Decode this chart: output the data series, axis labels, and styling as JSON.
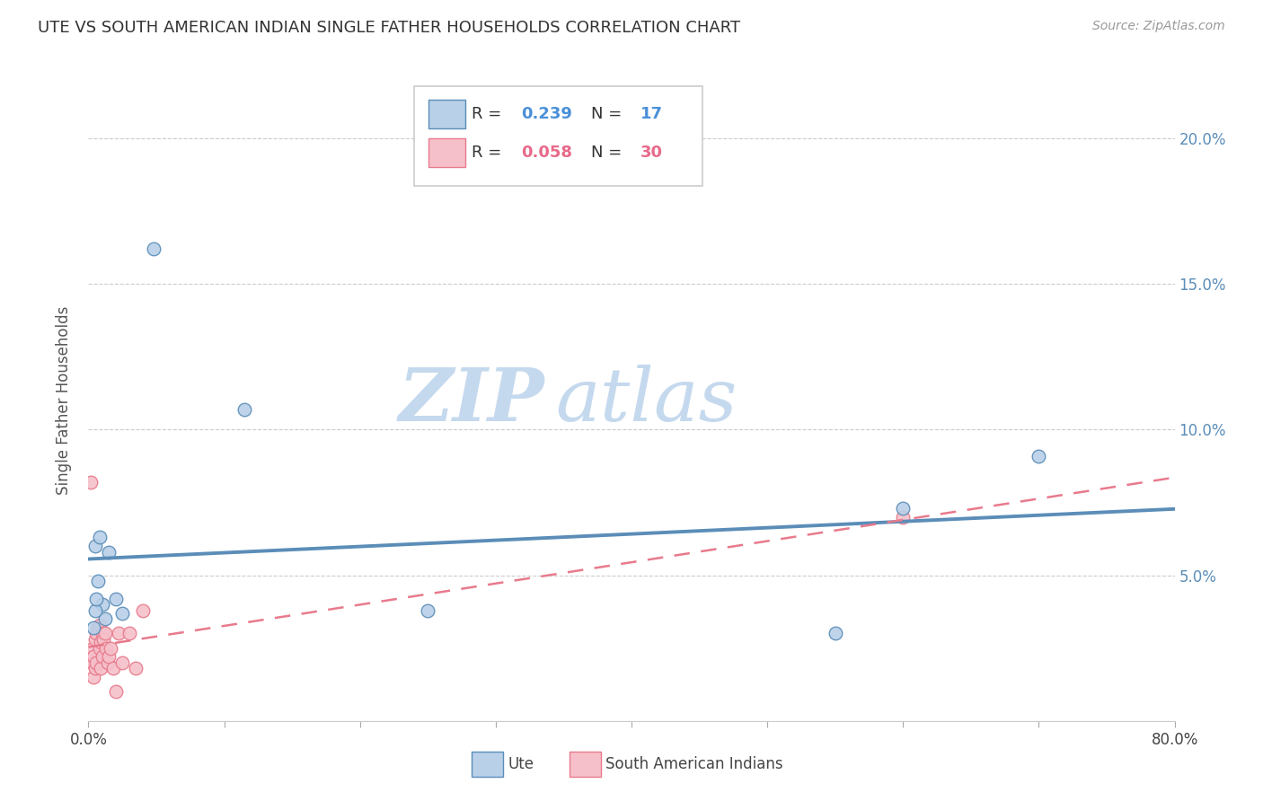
{
  "title": "UTE VS SOUTH AMERICAN INDIAN SINGLE FATHER HOUSEHOLDS CORRELATION CHART",
  "source": "Source: ZipAtlas.com",
  "ylabel": "Single Father Households",
  "xlim": [
    0,
    0.8
  ],
  "ylim": [
    0,
    0.22
  ],
  "xticks": [
    0.0,
    0.1,
    0.2,
    0.3,
    0.4,
    0.5,
    0.6,
    0.7,
    0.8
  ],
  "xticklabels": [
    "0.0%",
    "",
    "",
    "",
    "",
    "",
    "",
    "",
    "80.0%"
  ],
  "yticks": [
    0.0,
    0.05,
    0.1,
    0.15,
    0.2
  ],
  "yticklabels_left": [
    "",
    "",
    "",
    "",
    ""
  ],
  "yticklabels_right": [
    "",
    "5.0%",
    "10.0%",
    "15.0%",
    "20.0%"
  ],
  "ute_color": "#5B8DB8",
  "ute_fill": "#B8D0E8",
  "sa_color": "#E87A8C",
  "sa_fill": "#F5C0CA",
  "ute_R": 0.239,
  "ute_N": 17,
  "sa_R": 0.058,
  "sa_N": 30,
  "ute_points_x": [
    0.048,
    0.115,
    0.005,
    0.008,
    0.01,
    0.012,
    0.005,
    0.006,
    0.007,
    0.015,
    0.02,
    0.025,
    0.25,
    0.6,
    0.7,
    0.55,
    0.004
  ],
  "ute_points_y": [
    0.162,
    0.107,
    0.06,
    0.063,
    0.04,
    0.035,
    0.038,
    0.042,
    0.048,
    0.058,
    0.042,
    0.037,
    0.038,
    0.073,
    0.091,
    0.03,
    0.032
  ],
  "sa_points_x": [
    0.003,
    0.003,
    0.004,
    0.004,
    0.005,
    0.005,
    0.006,
    0.006,
    0.007,
    0.008,
    0.008,
    0.009,
    0.009,
    0.01,
    0.01,
    0.011,
    0.012,
    0.013,
    0.014,
    0.015,
    0.016,
    0.018,
    0.02,
    0.022,
    0.025,
    0.03,
    0.035,
    0.04,
    0.6,
    0.002
  ],
  "sa_points_y": [
    0.02,
    0.025,
    0.015,
    0.022,
    0.018,
    0.028,
    0.03,
    0.02,
    0.032,
    0.025,
    0.033,
    0.018,
    0.027,
    0.03,
    0.022,
    0.028,
    0.03,
    0.025,
    0.02,
    0.022,
    0.025,
    0.018,
    0.01,
    0.03,
    0.02,
    0.03,
    0.018,
    0.038,
    0.07,
    0.082
  ],
  "watermark_zip": "ZIP",
  "watermark_atlas": "atlas",
  "marker_size": 110,
  "background_color": "#ffffff",
  "grid_color": "#cccccc",
  "legend_text_color": "#333333",
  "legend_val_color_blue": "#4A90D9",
  "legend_val_color_pink": "#E8698A"
}
